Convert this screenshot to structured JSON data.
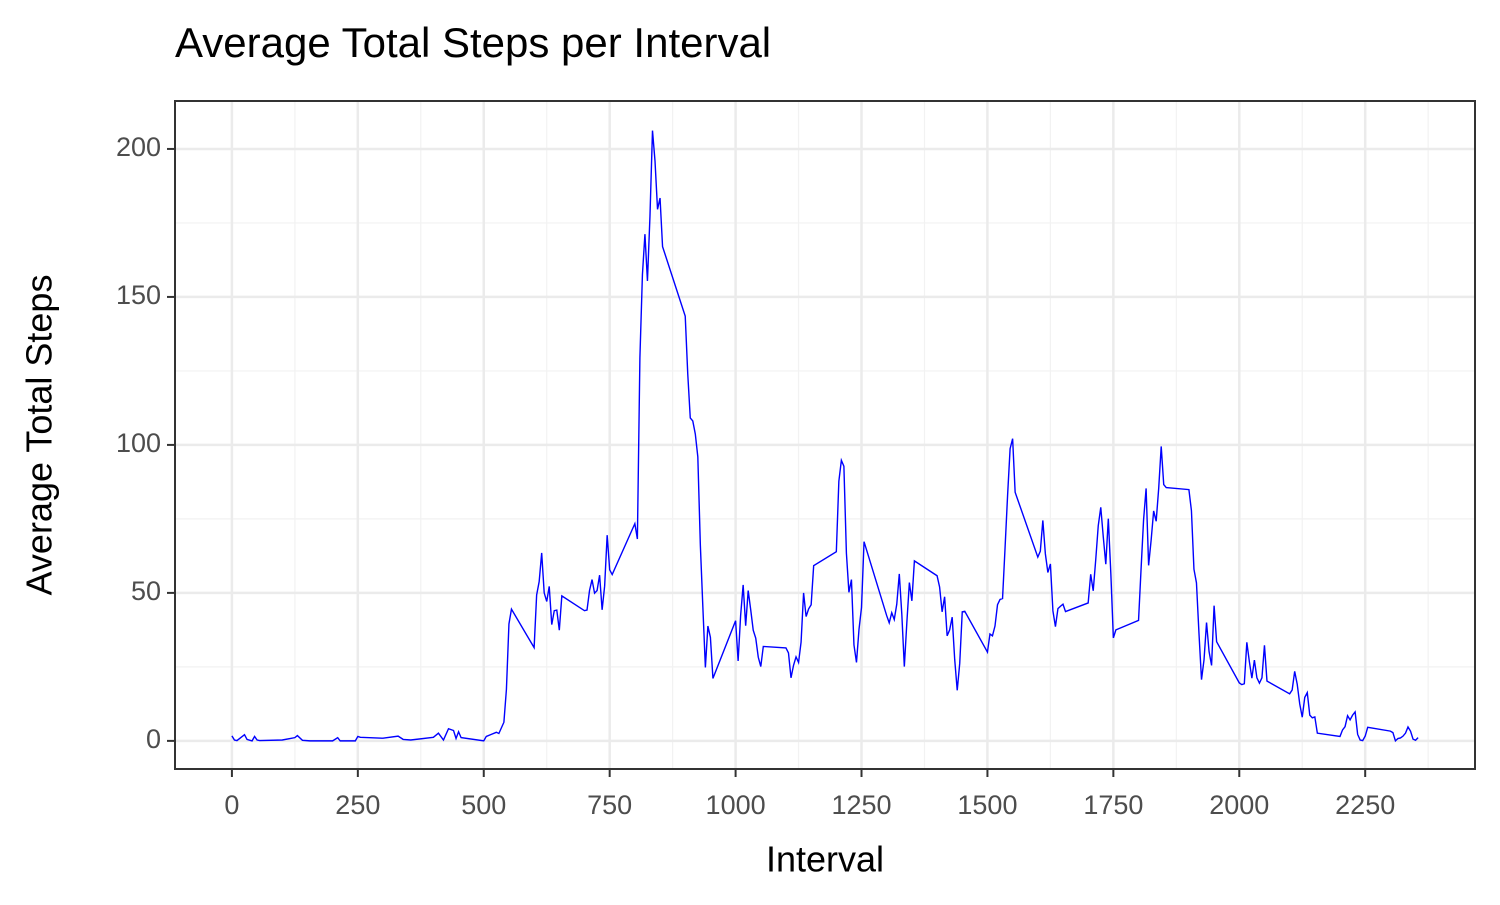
{
  "chart_data": {
    "type": "line",
    "title": "Average Total Steps per Interval",
    "xlabel": "Interval",
    "ylabel": "Average Total Steps",
    "x": [
      0,
      5,
      10,
      25,
      30,
      40,
      45,
      50,
      55,
      100,
      125,
      130,
      140,
      155,
      200,
      210,
      215,
      245,
      250,
      255,
      300,
      330,
      340,
      355,
      400,
      410,
      420,
      430,
      440,
      445,
      450,
      455,
      500,
      505,
      515,
      525,
      530,
      540,
      545,
      550,
      555,
      600,
      605,
      610,
      615,
      620,
      625,
      630,
      635,
      640,
      645,
      650,
      655,
      700,
      705,
      710,
      715,
      720,
      725,
      730,
      735,
      740,
      745,
      750,
      755,
      800,
      805,
      810,
      815,
      820,
      825,
      830,
      835,
      840,
      845,
      850,
      855,
      900,
      905,
      910,
      915,
      920,
      925,
      930,
      935,
      940,
      945,
      950,
      955,
      1000,
      1005,
      1010,
      1015,
      1020,
      1025,
      1030,
      1035,
      1040,
      1045,
      1050,
      1055,
      1100,
      1105,
      1110,
      1115,
      1120,
      1125,
      1130,
      1135,
      1140,
      1145,
      1150,
      1155,
      1200,
      1205,
      1210,
      1215,
      1220,
      1225,
      1230,
      1235,
      1240,
      1245,
      1250,
      1255,
      1300,
      1305,
      1310,
      1315,
      1320,
      1325,
      1330,
      1335,
      1340,
      1345,
      1350,
      1355,
      1400,
      1405,
      1410,
      1415,
      1420,
      1425,
      1430,
      1435,
      1440,
      1445,
      1450,
      1455,
      1500,
      1505,
      1510,
      1515,
      1520,
      1525,
      1530,
      1535,
      1540,
      1545,
      1550,
      1555,
      1600,
      1605,
      1610,
      1615,
      1620,
      1625,
      1630,
      1635,
      1640,
      1645,
      1650,
      1655,
      1700,
      1705,
      1710,
      1715,
      1720,
      1725,
      1730,
      1735,
      1740,
      1745,
      1750,
      1755,
      1800,
      1805,
      1810,
      1815,
      1820,
      1825,
      1830,
      1835,
      1840,
      1845,
      1850,
      1855,
      1900,
      1905,
      1910,
      1915,
      1920,
      1925,
      1930,
      1935,
      1940,
      1945,
      1950,
      1955,
      2000,
      2005,
      2010,
      2015,
      2020,
      2025,
      2030,
      2035,
      2040,
      2045,
      2050,
      2055,
      2100,
      2105,
      2110,
      2115,
      2120,
      2125,
      2130,
      2135,
      2140,
      2145,
      2150,
      2155,
      2200,
      2205,
      2210,
      2215,
      2220,
      2225,
      2230,
      2235,
      2240,
      2245,
      2250,
      2255,
      2300,
      2305,
      2310,
      2315,
      2320,
      2325,
      2330,
      2335,
      2340,
      2345,
      2350,
      2355
    ],
    "series": [
      {
        "name": "Average Total Steps",
        "color": "#0000ff",
        "values": [
          1.7,
          0.3,
          0.1,
          2.1,
          0.5,
          0,
          1.5,
          0.3,
          0.1,
          0.3,
          1.1,
          1.8,
          0.2,
          0,
          0,
          1.1,
          0,
          0,
          1.5,
          1.2,
          0.9,
          1.6,
          0.5,
          0.3,
          1.2,
          2.6,
          0.3,
          4.1,
          3.5,
          0.8,
          3.1,
          1.1,
          0,
          1.5,
          2.2,
          2.9,
          2.5,
          6.3,
          17.4,
          39.5,
          44.5,
          31.5,
          49.3,
          53.8,
          63.5,
          50,
          47.1,
          52.2,
          39.3,
          44,
          44.2,
          37.4,
          49,
          44,
          44.2,
          50.8,
          54.5,
          49.9,
          50.8,
          56,
          44.3,
          52.3,
          69.5,
          57.8,
          56.2,
          73.4,
          68.2,
          129.4,
          157.5,
          171.2,
          155.4,
          177.3,
          206.2,
          195.9,
          179.6,
          183.4,
          167,
          143.5,
          124,
          109.1,
          108.1,
          103.7,
          96,
          66.2,
          45.2,
          24.8,
          38.8,
          35,
          21.1,
          40.6,
          27,
          42.4,
          52.7,
          38.9,
          50.8,
          44.3,
          37.4,
          34.7,
          28.3,
          25.1,
          31.9,
          31.4,
          29.7,
          21.3,
          25.5,
          28.4,
          26.5,
          33.4,
          50,
          42,
          44.6,
          46,
          59.2,
          63.9,
          87.7,
          94.8,
          92.8,
          63.4,
          50.2,
          54.5,
          32.4,
          26.5,
          37.7,
          45.1,
          67.3,
          42.3,
          39.9,
          43.3,
          41,
          46.2,
          56.4,
          42.8,
          25.1,
          40,
          53.5,
          47.3,
          60.8,
          55.8,
          52,
          43.6,
          48.7,
          35.5,
          37.5,
          41.8,
          27.5,
          17.1,
          26.2,
          43.6,
          43.8,
          30,
          36.1,
          35.5,
          38.8,
          46,
          47.8,
          48.1,
          65.3,
          82.9,
          98.7,
          102.1,
          84,
          62.1,
          64.1,
          74.5,
          63.2,
          56.9,
          59.8,
          43.9,
          38.6,
          44.7,
          45.5,
          46.2,
          43.7,
          46.6,
          56.3,
          50.7,
          61.2,
          72.7,
          78.9,
          68.9,
          59.7,
          75.1,
          56.5,
          34.8,
          37.5,
          40.7,
          58,
          74.7,
          85.3,
          59.3,
          67.8,
          77.7,
          74.2,
          85.3,
          99.5,
          86.6,
          85.6,
          84.9,
          77.8,
          58,
          53.4,
          36.3,
          20.7,
          27.4,
          40,
          30.2,
          25.5,
          45.7,
          33.5,
          19.6,
          19,
          19.3,
          33.3,
          26.8,
          21.2,
          27.3,
          21.3,
          19.5,
          21.3,
          32.3,
          20.2,
          15.9,
          17.2,
          23.5,
          19.2,
          12.5,
          8,
          14.7,
          16.3,
          8.7,
          7.8,
          8.1,
          2.6,
          1.5,
          3.7,
          4.8,
          8.5,
          7.1,
          8.7,
          9.8,
          2.2,
          0.3,
          0.1,
          1.6,
          4.6,
          3.3,
          2.8,
          0,
          0.8,
          1,
          1.6,
          2.6,
          4.7,
          3.3,
          0.6,
          0.2,
          1.1
        ]
      }
    ],
    "xlim": [
      -113,
      2468
    ],
    "ylim": [
      -9.5,
      216.2
    ],
    "xticks": [
      0,
      250,
      500,
      750,
      1000,
      1250,
      1500,
      1750,
      2000,
      2250
    ],
    "yticks": [
      0,
      50,
      100,
      150,
      200
    ],
    "grid": true
  }
}
